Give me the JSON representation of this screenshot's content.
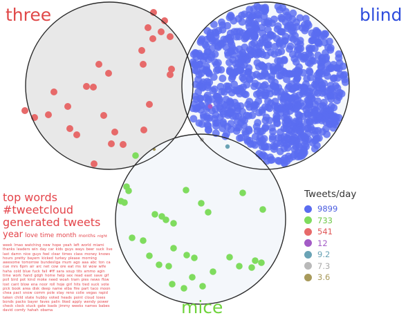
{
  "sets": [
    {
      "label": "three",
      "color": "#e04848"
    },
    {
      "label": "blind",
      "color": "#2f4ddd"
    },
    {
      "label": "mice",
      "color": "#6fd33c"
    }
  ],
  "legend": {
    "title": "Tweets/day",
    "items": [
      {
        "value": "9899",
        "color": "#5a6cf0",
        "text_color": "#4a5ce0"
      },
      {
        "value": "733",
        "color": "#7fdc5e",
        "text_color": "#6fc84a"
      },
      {
        "value": "541",
        "color": "#e76a6a",
        "text_color": "#e05858"
      },
      {
        "value": "12",
        "color": "#a35bc6",
        "text_color": "#a35bc6"
      },
      {
        "value": "9.2",
        "color": "#6aa3b5",
        "text_color": "#6aa3b5"
      },
      {
        "value": "7.3",
        "color": "#b9b9b9",
        "text_color": "#aaaaaa"
      },
      {
        "value": "3.6",
        "color": "#a89a5b",
        "text_color": "#a89a5b"
      }
    ]
  },
  "top_words": {
    "line1": "top words",
    "line2": "#tweetcloud",
    "line3": "generated tweets",
    "year_line": [
      "year",
      "love",
      "time",
      "month",
      "months",
      "night"
    ],
    "cloud": "week lmao watching new hope yeah left world miami thanks leaders win day car kids guys ways beer suck live last damn nice guys feel clear times class money knows hours pretty bayern kicked turkey please morning awesome tomorrow bundesliga mum ago aaa abc ton ca cue mrs 6pm air arc net cow ore eat ms lol wow wife haha cold blue fuck fail #ff sara soup tits ammo agin time work hand gdgh home help sex read east save gif poll bird pot kind moke need woah tram pies news flow lost cant blow ena noor roll hoje girl hits tied suck vote pick book area disk deep name elba fire part taco moon chea pact snow comm pole stay reno colie vegas rapid taken child state hubby voted heads point cloud loses bonds packs bayer faves palin liked apply wendy power check clock stuck gate loads jimmy weeks names babes david comfy hahah obama"
  }
}
